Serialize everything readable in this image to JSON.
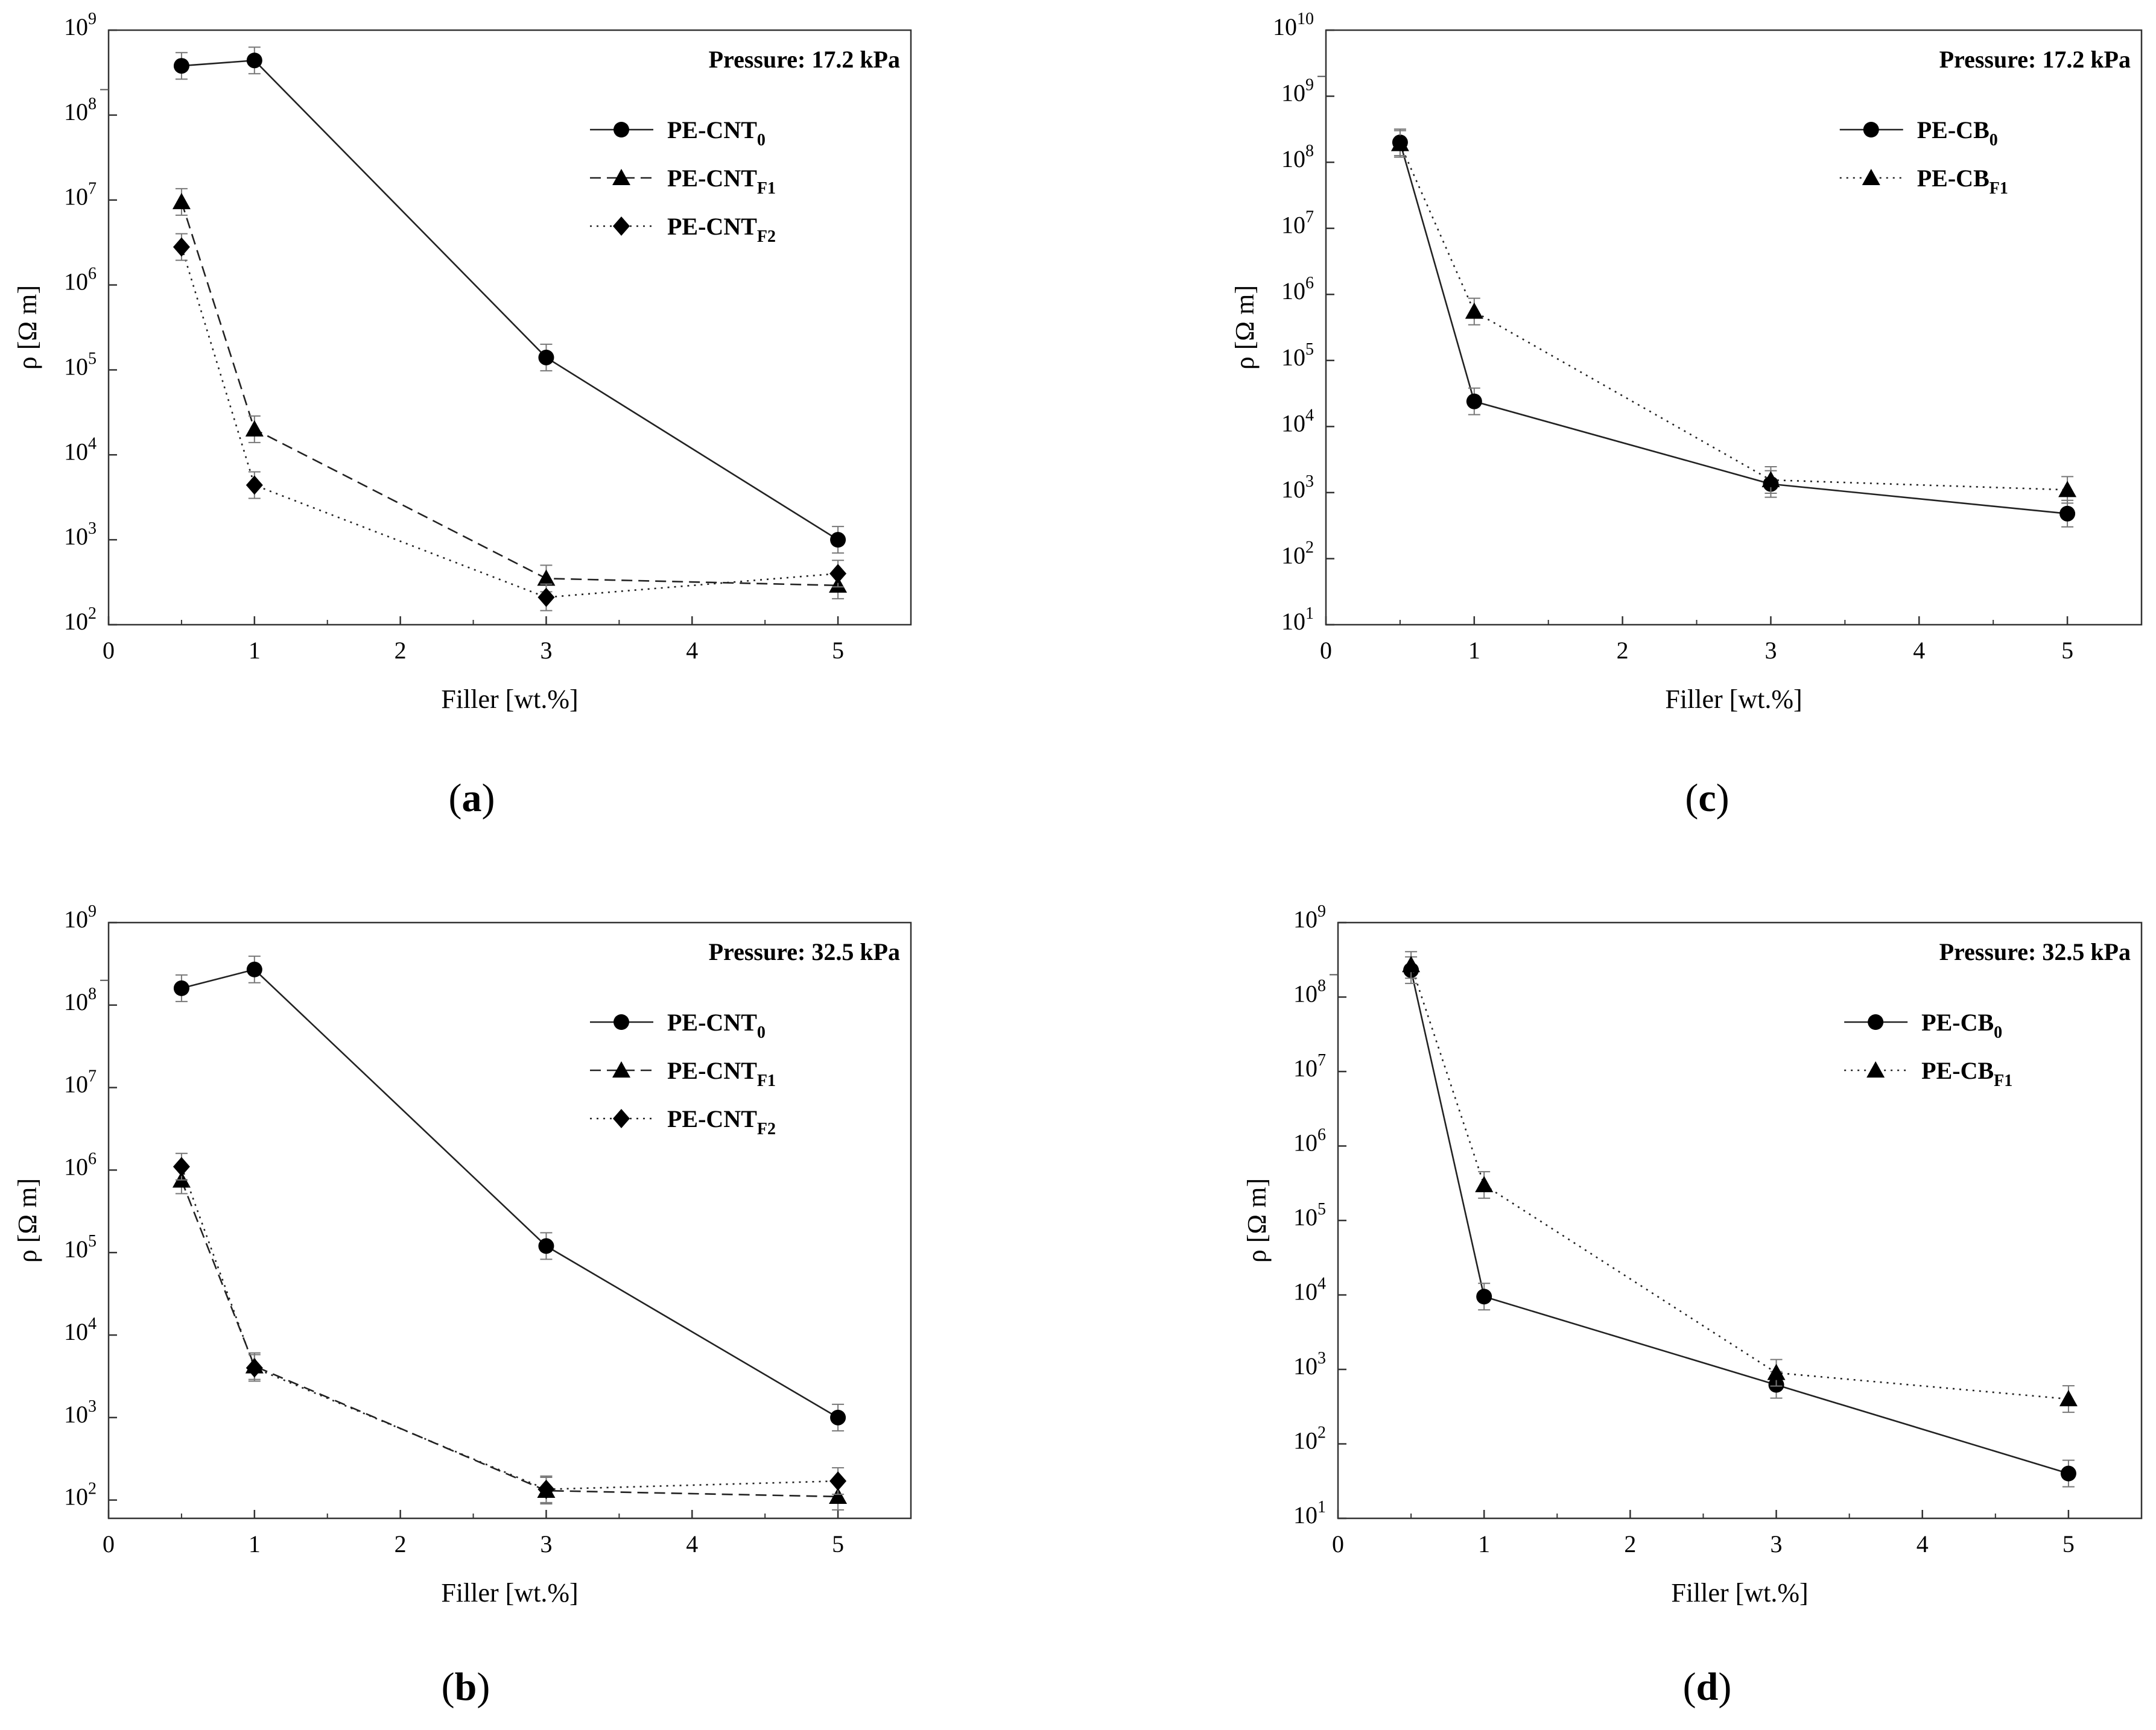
{
  "chart_data": [
    {
      "panel": "(a)",
      "type": "line",
      "annotation": "Pressure: 17.2 kPa",
      "xlabel": "Filler [wt.%]",
      "ylabel": "ρ [Ω m]",
      "xlim": [
        0,
        5.5
      ],
      "ylim": [
        100,
        1000000000
      ],
      "yscale": "log",
      "xticks": [
        0,
        1,
        2,
        3,
        4,
        5
      ],
      "legend_position": "top-right",
      "series": [
        {
          "name": "PE-CNT",
          "sub": "0",
          "marker": "circle",
          "dash": "solid",
          "x": [
            0.5,
            1,
            3,
            5
          ],
          "values": [
            380000000,
            440000000,
            140000,
            1000
          ]
        },
        {
          "name": "PE-CNT",
          "sub": "F1",
          "marker": "triangle",
          "dash": "dashed",
          "x": [
            0.5,
            1,
            3,
            5
          ],
          "values": [
            9500000,
            20000,
            350,
            290
          ]
        },
        {
          "name": "PE-CNT",
          "sub": "F2",
          "marker": "diamond",
          "dash": "dotted",
          "x": [
            0.5,
            1,
            3,
            5
          ],
          "values": [
            2800000,
            4400,
            210,
            400
          ]
        }
      ]
    },
    {
      "panel": "(b)",
      "type": "line",
      "annotation": "Pressure: 32.5 kPa",
      "xlabel": "Filler [wt.%]",
      "ylabel": "ρ [Ω m]",
      "xlim": [
        0,
        5.5
      ],
      "ylim": [
        60,
        1000000000
      ],
      "yscale": "log",
      "xticks": [
        0,
        1,
        2,
        3,
        4,
        5
      ],
      "legend_position": "top-right",
      "series": [
        {
          "name": "PE-CNT",
          "sub": "0",
          "marker": "circle",
          "dash": "solid",
          "x": [
            0.5,
            1,
            3,
            5
          ],
          "values": [
            160000000,
            270000000,
            120000,
            1000
          ]
        },
        {
          "name": "PE-CNT",
          "sub": "F1",
          "marker": "triangle",
          "dash": "dashed",
          "x": [
            0.5,
            1,
            3,
            5
          ],
          "values": [
            750000,
            4200,
            130,
            110
          ]
        },
        {
          "name": "PE-CNT",
          "sub": "F2",
          "marker": "diamond",
          "dash": "dotted",
          "x": [
            0.5,
            1,
            3,
            5
          ],
          "values": [
            1100000,
            4000,
            135,
            170
          ]
        }
      ]
    },
    {
      "panel": "(c)",
      "type": "line",
      "annotation": "Pressure: 17.2 kPa",
      "xlabel": "Filler [wt.%]",
      "ylabel": "ρ [Ω m]",
      "xlim": [
        0,
        5.5
      ],
      "ylim": [
        10,
        10000000000
      ],
      "yscale": "log",
      "xticks": [
        0,
        1,
        2,
        3,
        4,
        5
      ],
      "legend_position": "top-right",
      "series": [
        {
          "name": "PE-CB",
          "sub": "0",
          "marker": "circle",
          "dash": "solid",
          "x": [
            0.5,
            1,
            3,
            5
          ],
          "values": [
            200000000,
            24000,
            1350,
            480
          ]
        },
        {
          "name": "PE-CB",
          "sub": "F1",
          "marker": "triangle",
          "dash": "dotted",
          "x": [
            0.5,
            1,
            3,
            5
          ],
          "values": [
            190000000,
            550000,
            1550,
            1100
          ]
        }
      ]
    },
    {
      "panel": "(d)",
      "type": "line",
      "annotation": "Pressure: 32.5 kPa",
      "xlabel": "Filler [wt.%]",
      "ylabel": "ρ [Ω m]",
      "xlim": [
        0,
        5.5
      ],
      "ylim": [
        10,
        1000000000
      ],
      "yscale": "log",
      "xticks": [
        0,
        1,
        2,
        3,
        4,
        5
      ],
      "legend_position": "top-right",
      "series": [
        {
          "name": "PE-CB",
          "sub": "0",
          "marker": "circle",
          "dash": "solid",
          "x": [
            0.5,
            1,
            3,
            5
          ],
          "values": [
            230000000,
            9500,
            620,
            40
          ]
        },
        {
          "name": "PE-CB",
          "sub": "F1",
          "marker": "triangle",
          "dash": "dotted",
          "x": [
            0.5,
            1,
            3,
            5
          ],
          "values": [
            270000000,
            300000,
            900,
            400
          ]
        }
      ]
    }
  ],
  "captions": {
    "a": "a",
    "b": "b",
    "c": "c",
    "d": "d"
  }
}
